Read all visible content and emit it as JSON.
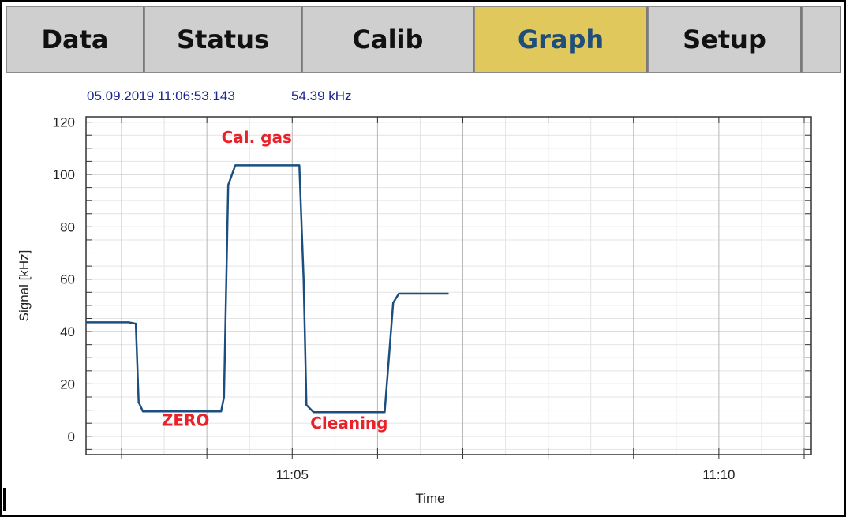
{
  "tabs": [
    {
      "label": "Data",
      "active": false
    },
    {
      "label": "Status",
      "active": false
    },
    {
      "label": "Calib",
      "active": false
    },
    {
      "label": "Graph",
      "active": true
    },
    {
      "label": "Setup",
      "active": false
    },
    {
      "label": "",
      "active": false
    }
  ],
  "colors": {
    "tab_active": "#e0c85c",
    "tab_active_text": "#1f4e7a",
    "series": "#1c4f80",
    "annotation": "#e8222a",
    "header": "#1c2590"
  },
  "graph": {
    "timestamp": "05.09.2019 11:06:53.143",
    "current_value": "54.39 kHz"
  },
  "chart_data": {
    "type": "line",
    "ylabel": "Signal [kHz]",
    "xlabel": "Time",
    "ylim": [
      -7,
      122
    ],
    "y_ticks": [
      0,
      20,
      40,
      60,
      80,
      100,
      120
    ],
    "y_tick_labels": [
      "0",
      "20",
      "40",
      "60",
      "80",
      "100",
      "120"
    ],
    "xlim": [
      "11:02:35",
      "11:11:05"
    ],
    "x_tick_labels": [
      {
        "time": "11:05:00",
        "label": "11:05"
      },
      {
        "time": "11:10:00",
        "label": "11:10"
      }
    ],
    "grid": true,
    "series": [
      {
        "x": [
          "11:02:35",
          "11:03:05",
          "11:03:10",
          "11:03:12",
          "11:03:15",
          "11:04:10",
          "11:04:12",
          "11:04:15",
          "11:04:20",
          "11:05:05",
          "11:05:08",
          "11:05:10",
          "11:05:15",
          "11:06:05",
          "11:06:08",
          "11:06:11",
          "11:06:15",
          "11:06:50"
        ],
        "y": [
          43.5,
          43.5,
          43,
          13,
          9.5,
          9.5,
          15,
          96,
          103.5,
          103.5,
          60,
          12,
          9.2,
          9.2,
          30,
          51,
          54.5,
          54.5
        ]
      }
    ],
    "annotations": [
      {
        "text": "Cal. gas",
        "x": "11:04:35",
        "y": 112
      },
      {
        "text": "ZERO",
        "x": "11:03:45",
        "y": 4
      },
      {
        "text": "Cleaning",
        "x": "11:05:40",
        "y": 3
      }
    ]
  }
}
